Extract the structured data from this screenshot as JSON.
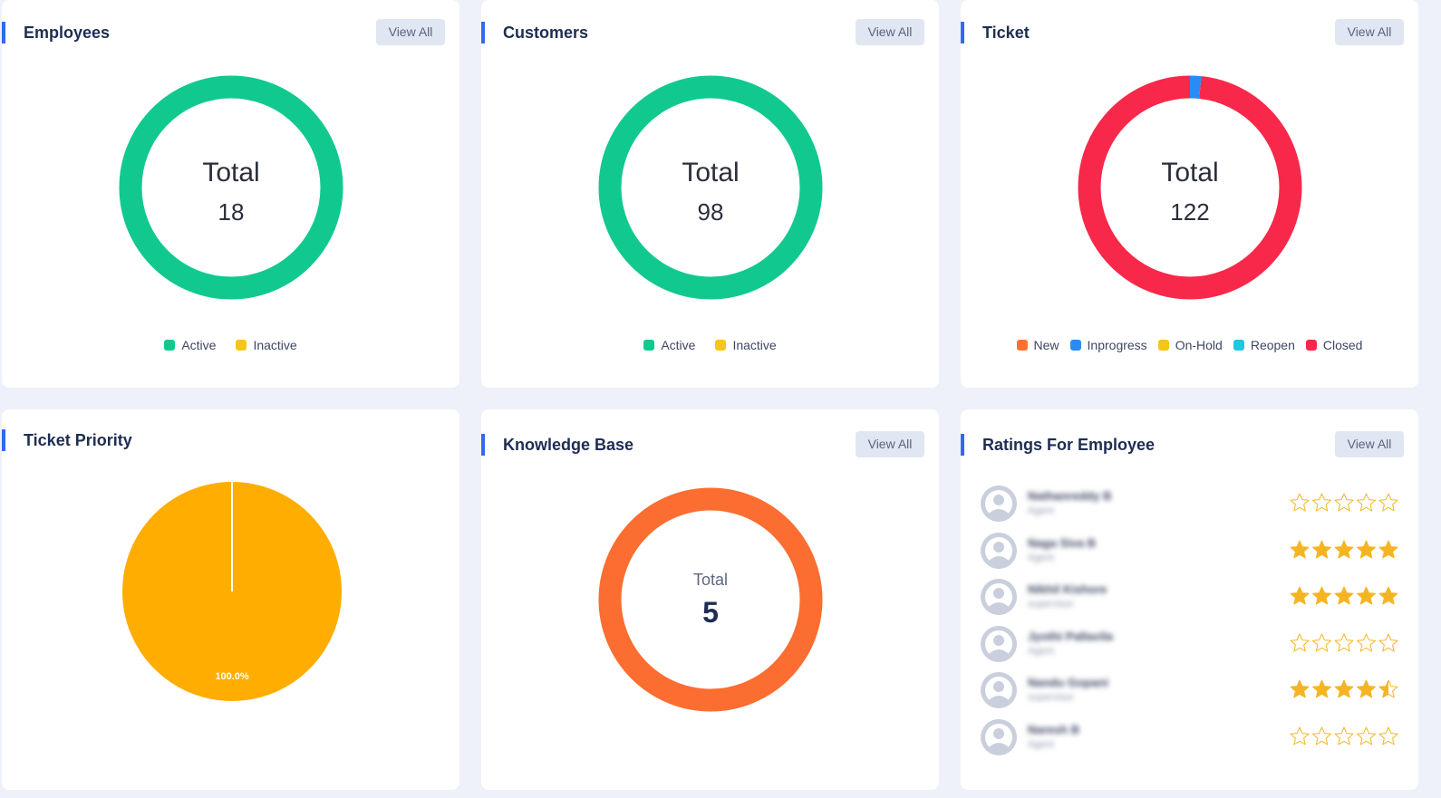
{
  "colors": {
    "accent": "#2f6bf2",
    "active": "#11c98f",
    "inactive": "#f5c518",
    "new": "#fc7230",
    "inprogress": "#2b8bf5",
    "onhold": "#f5c518",
    "reopen": "#1fc7e0",
    "closed": "#f7284a",
    "priority": "#ffad00",
    "kb": "#fb6d30",
    "star": "#f5b523"
  },
  "employees": {
    "title": "Employees",
    "view_all": "View All",
    "total_label": "Total",
    "total": "18",
    "legend": [
      "Active",
      "Inactive"
    ],
    "chart_data": {
      "type": "pie",
      "categories": [
        "Active",
        "Inactive"
      ],
      "values": [
        18,
        0
      ]
    }
  },
  "customers": {
    "title": "Customers",
    "view_all": "View All",
    "total_label": "Total",
    "total": "98",
    "legend": [
      "Active",
      "Inactive"
    ],
    "chart_data": {
      "type": "pie",
      "categories": [
        "Active",
        "Inactive"
      ],
      "values": [
        98,
        0
      ]
    }
  },
  "ticket": {
    "title": "Ticket",
    "view_all": "View All",
    "total_label": "Total",
    "total": "122",
    "legend": [
      "New",
      "Inprogress",
      "On-Hold",
      "Reopen",
      "Closed"
    ],
    "chart_data": {
      "type": "pie",
      "categories": [
        "New",
        "Inprogress",
        "On-Hold",
        "Reopen",
        "Closed"
      ],
      "values": [
        0,
        2,
        0,
        0,
        120
      ]
    }
  },
  "priority": {
    "title": "Ticket Priority",
    "slice_label": "100.0%",
    "chart_data": {
      "type": "pie",
      "values": [
        100
      ],
      "labels": [
        "100.0%"
      ]
    }
  },
  "kb": {
    "title": "Knowledge Base",
    "view_all": "View All",
    "total_label": "Total",
    "total": "5"
  },
  "ratings": {
    "title": "Ratings For Employee",
    "view_all": "View All",
    "items": [
      {
        "name": "Nathanreddy B",
        "role": "Agent",
        "rating": 0
      },
      {
        "name": "Naga Siva B",
        "role": "Agent",
        "rating": 5
      },
      {
        "name": "Nikhil Kishore",
        "role": "supervisor",
        "rating": 5
      },
      {
        "name": "Jyothi Pallavila",
        "role": "Agent",
        "rating": 0
      },
      {
        "name": "Nandu Gopani",
        "role": "supervisor",
        "rating": 4.5
      },
      {
        "name": "Naresh B",
        "role": "Agent",
        "rating": 0
      }
    ]
  }
}
